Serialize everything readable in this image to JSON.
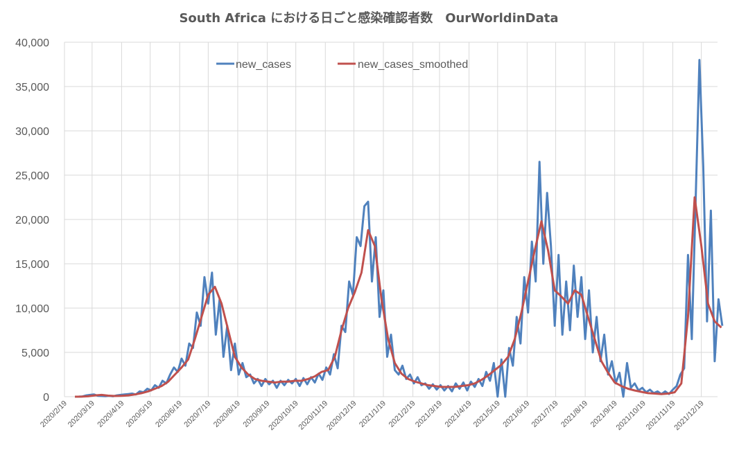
{
  "chart_data": {
    "type": "line",
    "title": "South Africa における日ごと感染確認者数　OurWorldinData",
    "xlabel": "",
    "ylabel": "",
    "ylim": [
      0,
      40000
    ],
    "y_ticks": [
      0,
      5000,
      10000,
      15000,
      20000,
      25000,
      30000,
      35000,
      40000
    ],
    "y_tick_labels": [
      "0",
      "5,000",
      "10,000",
      "15,000",
      "20,000",
      "25,000",
      "30,000",
      "35,000",
      "40,000"
    ],
    "x_range": [
      "2020-02-19",
      "2022-01-05"
    ],
    "x_tick_dates": [
      "2020-02-19",
      "2020-03-19",
      "2020-04-19",
      "2020-05-19",
      "2020-06-19",
      "2020-07-19",
      "2020-08-19",
      "2020-09-19",
      "2020-10-19",
      "2020-11-19",
      "2020-12-19",
      "2021-01-19",
      "2021-02-19",
      "2021-03-19",
      "2021-04-19",
      "2021-05-19",
      "2021-06-19",
      "2021-07-19",
      "2021-08-19",
      "2021-09-19",
      "2021-10-19",
      "2021-11-19",
      "2021-12-19"
    ],
    "x_tick_labels": [
      "2020/2/19",
      "2020/3/19",
      "2020/4/19",
      "2020/5/19",
      "2020/6/19",
      "2020/7/19",
      "2020/8/19",
      "2020/9/19",
      "2020/10/19",
      "2020/11/19",
      "2020/12/19",
      "2021/1/19",
      "2021/2/19",
      "2021/3/19",
      "2021/4/19",
      "2021/5/19",
      "2021/6/19",
      "2021/7/19",
      "2021/8/19",
      "2021/9/19",
      "2021/10/19",
      "2021/11/19",
      "2021/12/19"
    ],
    "grid": true,
    "legend_position": "top-center",
    "series": [
      {
        "name": "new_cases",
        "color": "#4f81bd",
        "start_date": "2020-03-01",
        "step_days": 4,
        "values": [
          0,
          10,
          30,
          150,
          200,
          250,
          100,
          80,
          60,
          100,
          50,
          150,
          200,
          250,
          300,
          350,
          250,
          600,
          500,
          900,
          700,
          1300,
          1000,
          1800,
          1500,
          2500,
          3300,
          2800,
          4300,
          3500,
          6000,
          5500,
          9500,
          8000,
          13500,
          10500,
          14000,
          7000,
          11000,
          4500,
          8000,
          3000,
          6000,
          2500,
          3800,
          2200,
          2500,
          1500,
          2000,
          1200,
          2000,
          1400,
          1800,
          1000,
          1800,
          1300,
          1900,
          1500,
          2000,
          1200,
          2100,
          1400,
          2200,
          1600,
          2600,
          1900,
          3300,
          2500,
          4800,
          3200,
          8000,
          7300,
          13000,
          11500,
          18000,
          17000,
          21500,
          22000,
          13000,
          18000,
          9000,
          12000,
          4500,
          7000,
          3000,
          2500,
          3500,
          2000,
          2500,
          1500,
          2200,
          1300,
          1500,
          900,
          1400,
          800,
          1300,
          700,
          1200,
          600,
          1500,
          900,
          1600,
          700,
          1700,
          1100,
          2000,
          1200,
          2800,
          1800,
          3800,
          0,
          4200,
          0,
          5500,
          3500,
          9000,
          6000,
          13500,
          9500,
          17500,
          13000,
          26500,
          15000,
          23000,
          17000,
          8000,
          16000,
          7000,
          13000,
          7500,
          14800,
          9000,
          13500,
          6500,
          12000,
          5000,
          9000,
          4000,
          7000,
          2500,
          4000,
          1500,
          2700,
          0,
          3800,
          1000,
          1500,
          700,
          1000,
          500,
          800,
          400,
          600,
          300,
          600,
          300,
          800,
          1200,
          2500,
          3200,
          16000,
          6500,
          22000,
          38000,
          26000,
          8500,
          21000,
          4000,
          11000,
          8000
        ]
      },
      {
        "name": "new_cases_smoothed",
        "color": "#c0504d",
        "start_date": "2020-03-01",
        "step_days": 7,
        "values": [
          0,
          5,
          50,
          150,
          200,
          120,
          80,
          100,
          150,
          250,
          400,
          600,
          900,
          1200,
          1700,
          2500,
          3300,
          4200,
          6500,
          9000,
          11500,
          12400,
          10500,
          7500,
          4500,
          3300,
          2500,
          2000,
          1800,
          1700,
          1600,
          1700,
          1700,
          1800,
          1800,
          2000,
          2300,
          2800,
          3000,
          4500,
          7500,
          10000,
          11800,
          14000,
          18800,
          17000,
          11000,
          6500,
          3800,
          2600,
          2000,
          1700,
          1500,
          1300,
          1200,
          1100,
          1100,
          1100,
          1200,
          1300,
          1500,
          1900,
          2400,
          3000,
          3600,
          4500,
          6500,
          9500,
          13000,
          16500,
          19800,
          16500,
          12000,
          11300,
          10500,
          12000,
          11500,
          9000,
          6500,
          4000,
          2700,
          1600,
          1200,
          900,
          700,
          550,
          400,
          350,
          300,
          350,
          500,
          1500,
          9000,
          22500,
          17000,
          10500,
          8500,
          7800
        ]
      }
    ]
  }
}
